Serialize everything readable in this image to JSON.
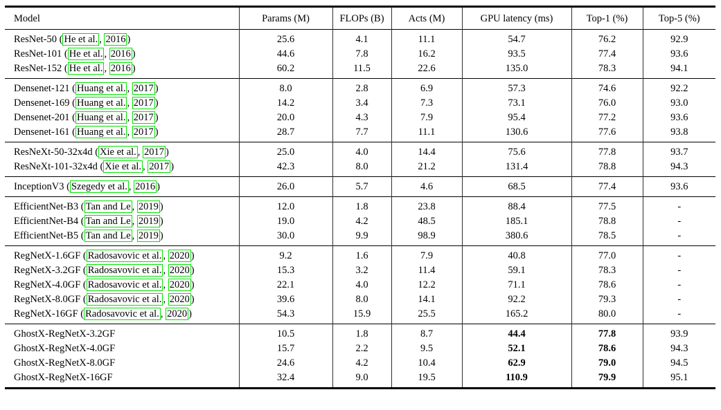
{
  "page": {
    "background": "#ffffff",
    "text_color": "#000000"
  },
  "table": {
    "citation_link_color": "#00e400",
    "columns": [
      {
        "key": "model",
        "label": "Model"
      },
      {
        "key": "params",
        "label": "Params (M)"
      },
      {
        "key": "flops",
        "label": "FLOPs (B)"
      },
      {
        "key": "acts",
        "label": "Acts (M)"
      },
      {
        "key": "latency",
        "label": "GPU latency (ms)"
      },
      {
        "key": "top1",
        "label": "Top-1 (%)"
      },
      {
        "key": "top5",
        "label": "Top-5 (%)"
      }
    ],
    "sections": [
      {
        "bold_value_indices": [],
        "rows": [
          {
            "model": "ResNet-50",
            "cite": {
              "author": "He et al.",
              "year": "2016"
            },
            "values": [
              "25.6",
              "4.1",
              "11.1",
              "54.7",
              "76.2",
              "92.9"
            ]
          },
          {
            "model": "ResNet-101",
            "cite": {
              "author": "He et al.",
              "year": "2016"
            },
            "values": [
              "44.6",
              "7.8",
              "16.2",
              "93.5",
              "77.4",
              "93.6"
            ]
          },
          {
            "model": "ResNet-152",
            "cite": {
              "author": "He et al.",
              "year": "2016"
            },
            "values": [
              "60.2",
              "11.5",
              "22.6",
              "135.0",
              "78.3",
              "94.1"
            ]
          }
        ]
      },
      {
        "bold_value_indices": [],
        "rows": [
          {
            "model": "Densenet-121",
            "cite": {
              "author": "Huang et al.",
              "year": "2017"
            },
            "values": [
              "8.0",
              "2.8",
              "6.9",
              "57.3",
              "74.6",
              "92.2"
            ]
          },
          {
            "model": "Densenet-169",
            "cite": {
              "author": "Huang et al.",
              "year": "2017"
            },
            "values": [
              "14.2",
              "3.4",
              "7.3",
              "73.1",
              "76.0",
              "93.0"
            ]
          },
          {
            "model": "Densenet-201",
            "cite": {
              "author": "Huang et al.",
              "year": "2017"
            },
            "values": [
              "20.0",
              "4.3",
              "7.9",
              "95.4",
              "77.2",
              "93.6"
            ]
          },
          {
            "model": "Densenet-161",
            "cite": {
              "author": "Huang et al.",
              "year": "2017"
            },
            "values": [
              "28.7",
              "7.7",
              "11.1",
              "130.6",
              "77.6",
              "93.8"
            ]
          }
        ]
      },
      {
        "bold_value_indices": [],
        "rows": [
          {
            "model": "ResNeXt-50-32x4d",
            "cite": {
              "author": "Xie et al.",
              "year": "2017"
            },
            "values": [
              "25.0",
              "4.0",
              "14.4",
              "75.6",
              "77.8",
              "93.7"
            ]
          },
          {
            "model": "ResNeXt-101-32x4d",
            "cite": {
              "author": "Xie et al.",
              "year": "2017"
            },
            "values": [
              "42.3",
              "8.0",
              "21.2",
              "131.4",
              "78.8",
              "94.3"
            ]
          }
        ]
      },
      {
        "bold_value_indices": [],
        "rows": [
          {
            "model": "InceptionV3",
            "cite": {
              "author": "Szegedy et al.",
              "year": "2016"
            },
            "values": [
              "26.0",
              "5.7",
              "4.6",
              "68.5",
              "77.4",
              "93.6"
            ]
          }
        ]
      },
      {
        "bold_value_indices": [],
        "rows": [
          {
            "model": "EfficientNet-B3",
            "cite": {
              "author": "Tan and Le",
              "year": "2019"
            },
            "values": [
              "12.0",
              "1.8",
              "23.8",
              "88.4",
              "77.5",
              "-"
            ]
          },
          {
            "model": "EfficientNet-B4",
            "cite": {
              "author": "Tan and Le",
              "year": "2019"
            },
            "values": [
              "19.0",
              "4.2",
              "48.5",
              "185.1",
              "78.8",
              "-"
            ]
          },
          {
            "model": "EfficientNet-B5",
            "cite": {
              "author": "Tan and Le",
              "year": "2019"
            },
            "values": [
              "30.0",
              "9.9",
              "98.9",
              "380.6",
              "78.5",
              "-"
            ]
          }
        ]
      },
      {
        "bold_value_indices": [],
        "rows": [
          {
            "model": "RegNetX-1.6GF",
            "cite": {
              "author": "Radosavovic et al.",
              "year": "2020"
            },
            "values": [
              "9.2",
              "1.6",
              "7.9",
              "40.8",
              "77.0",
              "-"
            ]
          },
          {
            "model": "RegNetX-3.2GF",
            "cite": {
              "author": "Radosavovic et al.",
              "year": "2020"
            },
            "values": [
              "15.3",
              "3.2",
              "11.4",
              "59.1",
              "78.3",
              "-"
            ]
          },
          {
            "model": "RegNetX-4.0GF",
            "cite": {
              "author": "Radosavovic et al.",
              "year": "2020"
            },
            "values": [
              "22.1",
              "4.0",
              "12.2",
              "71.1",
              "78.6",
              "-"
            ]
          },
          {
            "model": "RegNetX-8.0GF",
            "cite": {
              "author": "Radosavovic et al.",
              "year": "2020"
            },
            "values": [
              "39.6",
              "8.0",
              "14.1",
              "92.2",
              "79.3",
              "-"
            ]
          },
          {
            "model": "RegNetX-16GF",
            "cite": {
              "author": "Radosavovic et al.",
              "year": "2020"
            },
            "values": [
              "54.3",
              "15.9",
              "25.5",
              "165.2",
              "80.0",
              "-"
            ]
          }
        ]
      },
      {
        "bold_value_indices": [
          3,
          4
        ],
        "rows": [
          {
            "model": "GhostX-RegNetX-3.2GF",
            "cite": null,
            "values": [
              "10.5",
              "1.8",
              "8.7",
              "44.4",
              "77.8",
              "93.9"
            ]
          },
          {
            "model": "GhostX-RegNetX-4.0GF",
            "cite": null,
            "values": [
              "15.7",
              "2.2",
              "9.5",
              "52.1",
              "78.6",
              "94.3"
            ]
          },
          {
            "model": "GhostX-RegNetX-8.0GF",
            "cite": null,
            "values": [
              "24.6",
              "4.2",
              "10.4",
              "62.9",
              "79.0",
              "94.5"
            ]
          },
          {
            "model": "GhostX-RegNetX-16GF",
            "cite": null,
            "values": [
              "32.4",
              "9.0",
              "19.5",
              "110.9",
              "79.9",
              "95.1"
            ]
          }
        ]
      }
    ]
  }
}
